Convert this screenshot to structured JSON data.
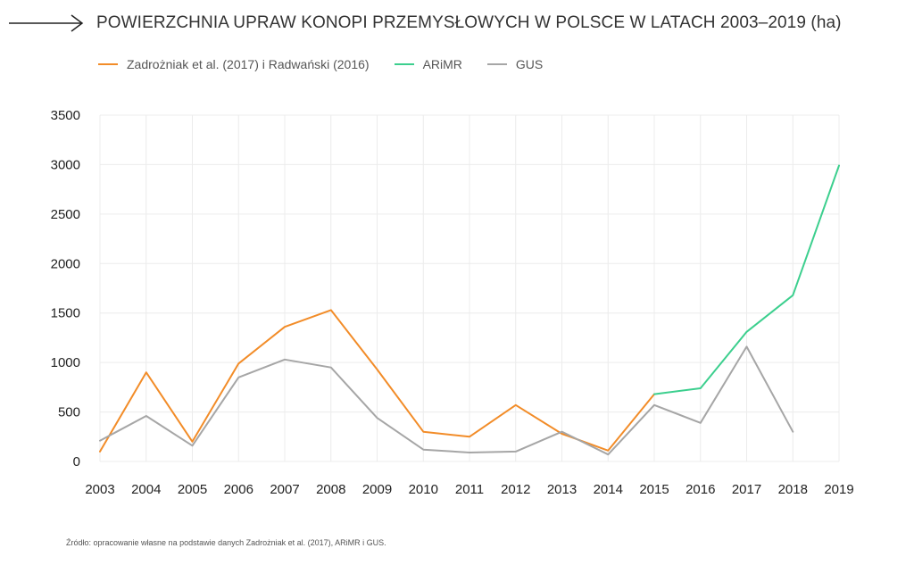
{
  "header": {
    "title": "POWIERZCHNIA UPRAW KONOPI PRZEMYSŁOWYCH W POLSCE W LATACH 2003–2019 (ha)",
    "arrow_icon": "long-arrow-right-icon"
  },
  "source": "Źródło: opracowanie własne na podstawie danych Zadrożniak et al. (2017), ARiMR i GUS.",
  "chart_data": {
    "type": "line",
    "title": "POWIERZCHNIA UPRAW KONOPI PRZEMYSŁOWYCH W POLSCE W LATACH 2003–2019 (ha)",
    "xlabel": "",
    "ylabel": "",
    "x": [
      2003,
      2004,
      2005,
      2006,
      2007,
      2008,
      2009,
      2010,
      2011,
      2012,
      2013,
      2014,
      2015,
      2016,
      2017,
      2018,
      2019
    ],
    "ylim": [
      0,
      3500
    ],
    "yticks": [
      0,
      500,
      1000,
      1500,
      2000,
      2500,
      3000,
      3500
    ],
    "grid": true,
    "legend_position": "top-left",
    "series": [
      {
        "name": "Zadrożniak et al. (2017) i Radwański (2016)",
        "color": "#f28c28",
        "x": [
          2003,
          2004,
          2005,
          2006,
          2007,
          2008,
          2009,
          2010,
          2011,
          2012,
          2013,
          2014,
          2015
        ],
        "values": [
          100,
          900,
          200,
          990,
          1360,
          1530,
          930,
          300,
          250,
          570,
          280,
          110,
          680
        ]
      },
      {
        "name": "ARiMR",
        "color": "#3ccf8e",
        "x": [
          2015,
          2016,
          2017,
          2018,
          2019
        ],
        "values": [
          680,
          740,
          1310,
          1680,
          2990
        ]
      },
      {
        "name": "GUS",
        "color": "#a6a6a6",
        "x": [
          2003,
          2004,
          2005,
          2006,
          2007,
          2008,
          2009,
          2010,
          2011,
          2012,
          2013,
          2014,
          2015,
          2016,
          2017,
          2018
        ],
        "values": [
          210,
          460,
          160,
          850,
          1030,
          950,
          440,
          120,
          90,
          100,
          300,
          70,
          570,
          390,
          1160,
          300
        ]
      }
    ]
  }
}
